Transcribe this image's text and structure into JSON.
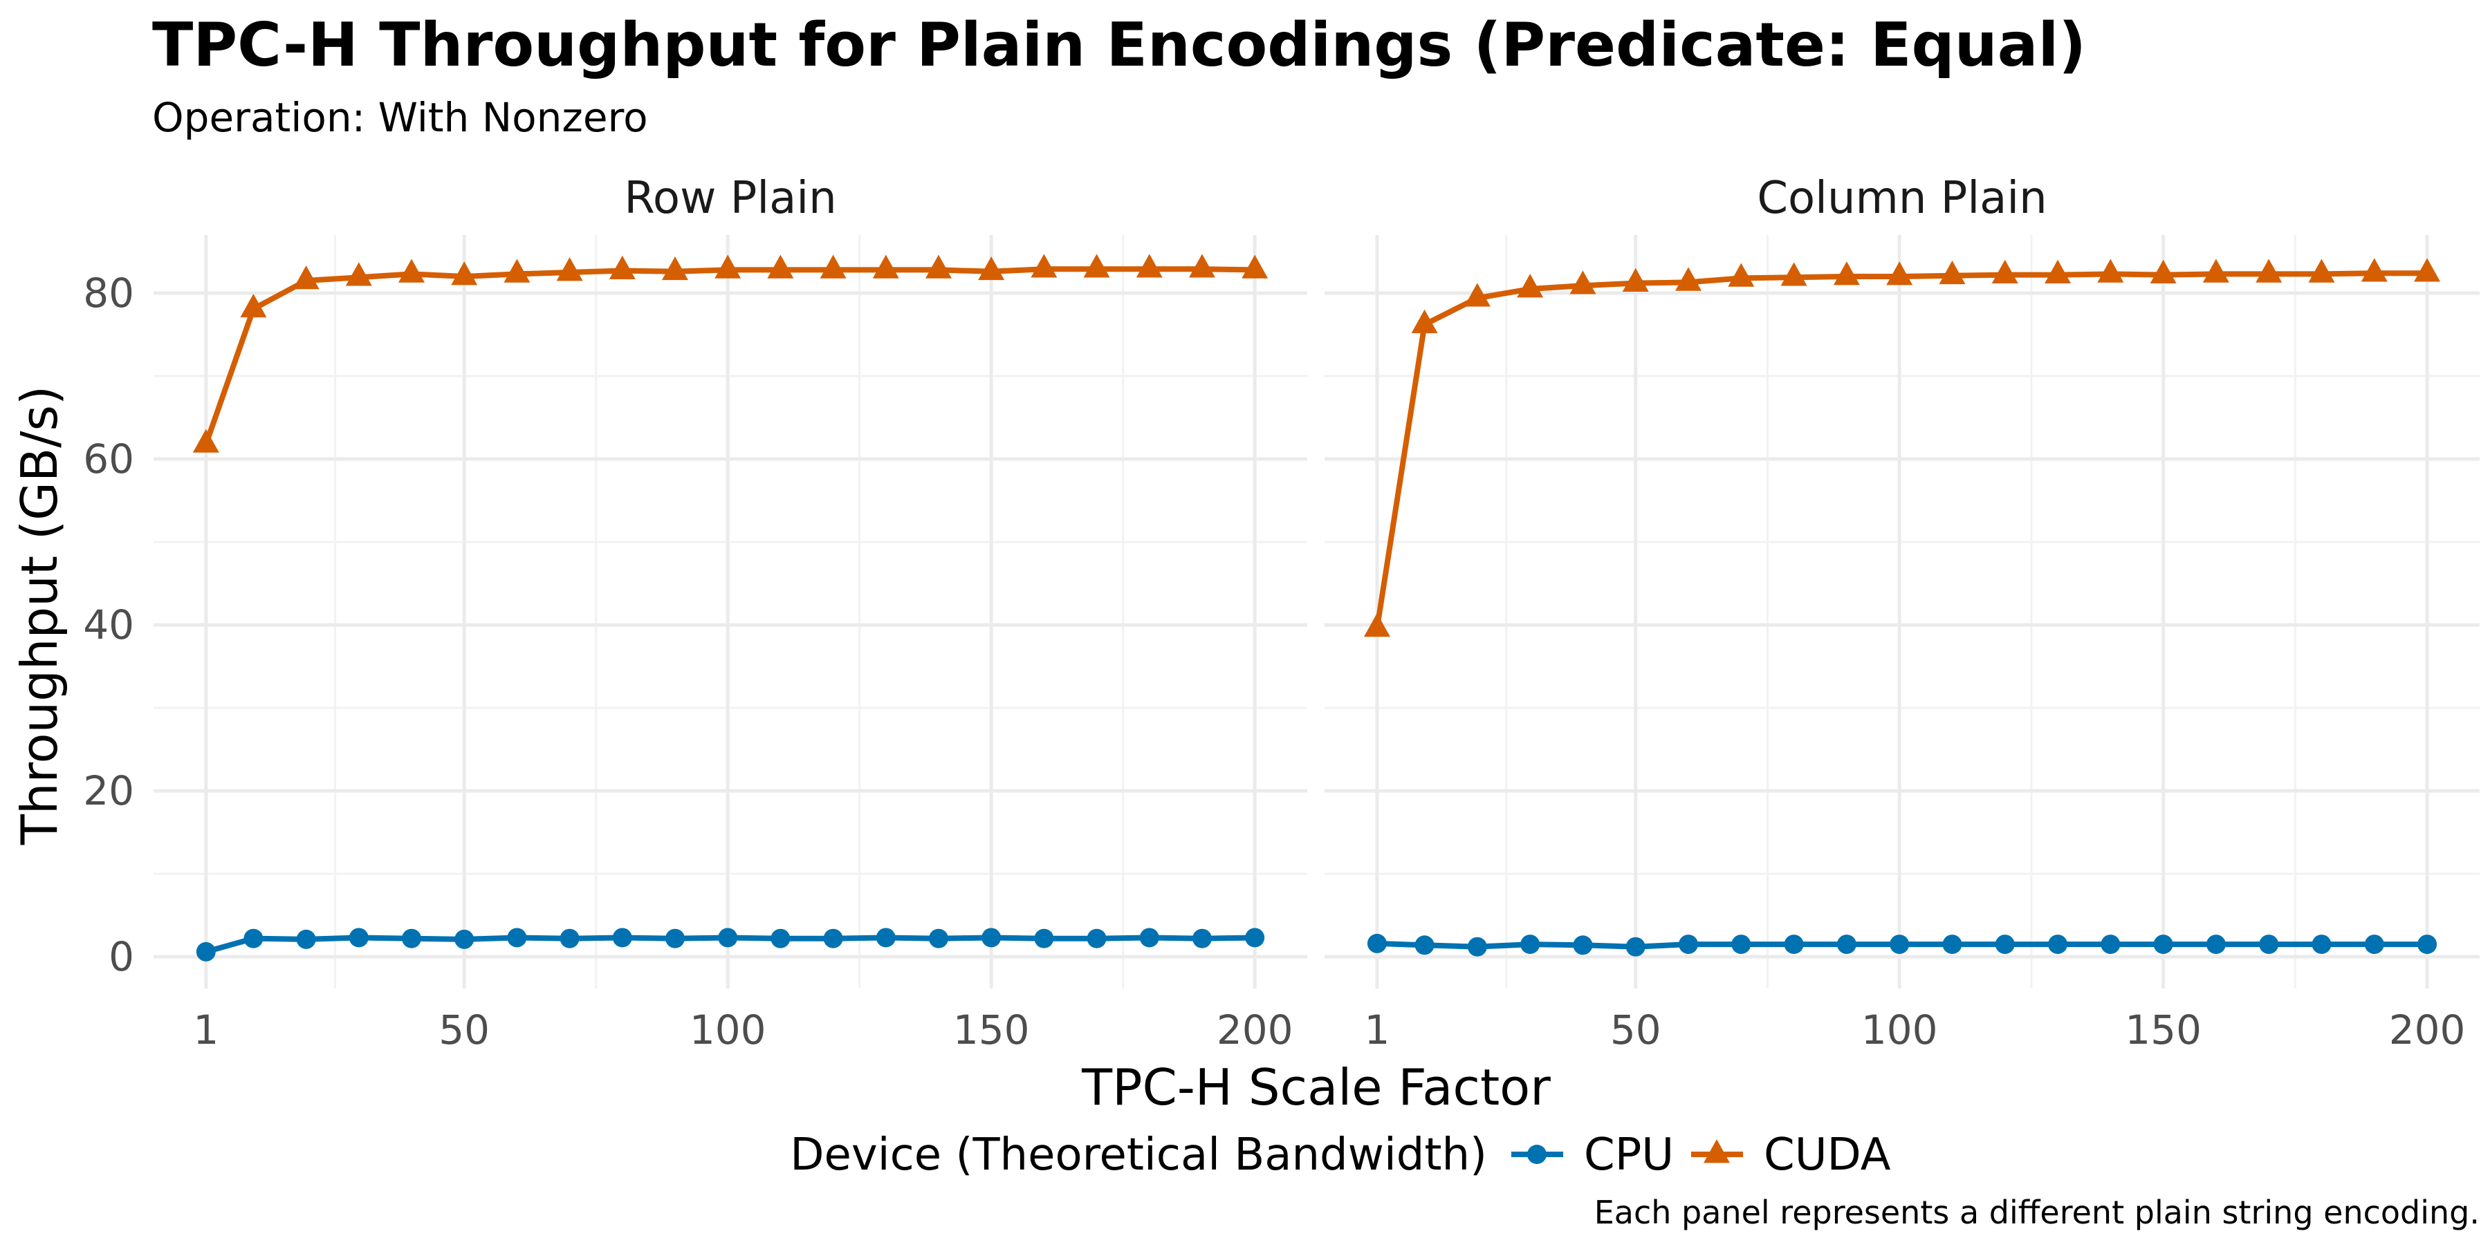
{
  "chart_data": {
    "type": "line",
    "title": "TPC-H Throughput for Plain Encodings (Predicate: Equal)",
    "subtitle": "Operation: With Nonzero",
    "xlabel": "TPC-H Scale Factor",
    "ylabel": "Throughput (GB/s)",
    "caption": "Each panel represents a different plain string encoding.",
    "legend_title": "Device (Theoretical Bandwidth)",
    "legend_position": "bottom",
    "grid": true,
    "xlim": [
      1,
      200
    ],
    "ylim": [
      0,
      85
    ],
    "x_ticks": [
      1,
      50,
      100,
      150,
      200
    ],
    "y_ticks": [
      0,
      20,
      40,
      60,
      80
    ],
    "x": [
      1,
      10,
      20,
      30,
      40,
      50,
      60,
      70,
      80,
      90,
      100,
      110,
      120,
      130,
      140,
      150,
      160,
      170,
      180,
      190,
      200
    ],
    "colors": {
      "CPU": "#0072b2",
      "CUDA": "#d55e00"
    },
    "markers": {
      "CPU": "circle",
      "CUDA": "triangle"
    },
    "legend": [
      "CPU",
      "CUDA"
    ],
    "panels": [
      {
        "label": "Row Plain",
        "series": [
          {
            "name": "CPU",
            "values": [
              0.6,
              2.2,
              2.1,
              2.3,
              2.2,
              2.1,
              2.3,
              2.2,
              2.3,
              2.2,
              2.3,
              2.2,
              2.2,
              2.3,
              2.2,
              2.3,
              2.2,
              2.2,
              2.3,
              2.2,
              2.3
            ]
          },
          {
            "name": "CUDA",
            "values": [
              61.8,
              78.1,
              81.5,
              81.9,
              82.3,
              82.0,
              82.3,
              82.5,
              82.7,
              82.6,
              82.8,
              82.8,
              82.8,
              82.8,
              82.8,
              82.6,
              82.9,
              82.9,
              82.9,
              82.9,
              82.8
            ]
          }
        ]
      },
      {
        "label": "Column Plain",
        "series": [
          {
            "name": "CPU",
            "values": [
              1.6,
              1.4,
              1.2,
              1.5,
              1.4,
              1.2,
              1.5,
              1.5,
              1.5,
              1.5,
              1.5,
              1.5,
              1.5,
              1.5,
              1.5,
              1.5,
              1.5,
              1.5,
              1.5,
              1.5,
              1.5
            ]
          },
          {
            "name": "CUDA",
            "values": [
              39.6,
              76.2,
              79.4,
              80.5,
              80.9,
              81.2,
              81.3,
              81.8,
              81.9,
              82.0,
              82.0,
              82.1,
              82.2,
              82.2,
              82.3,
              82.2,
              82.3,
              82.3,
              82.3,
              82.4,
              82.4
            ]
          }
        ]
      }
    ]
  }
}
